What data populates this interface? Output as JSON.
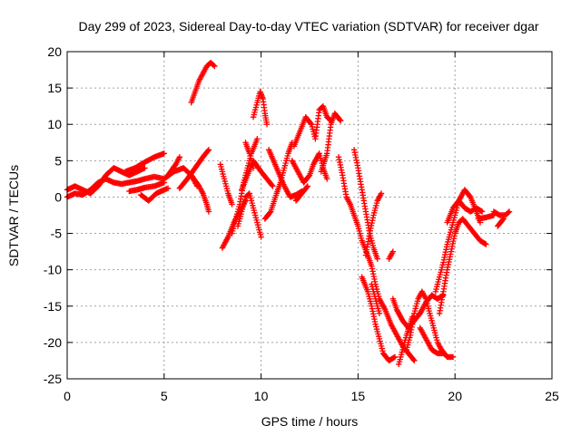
{
  "chart_data": {
    "type": "scatter",
    "title": "Day 299 of 2023, Sidereal Day-to-day VTEC variation (SDTVAR) for receiver dgar",
    "xlabel": "GPS time / hours",
    "ylabel": "SDTVAR / TECUs",
    "xlim": [
      0,
      25
    ],
    "ylim": [
      -25,
      20
    ],
    "xticks": [
      "0",
      "5",
      "10",
      "15",
      "20",
      "25"
    ],
    "yticks": [
      "-25",
      "-20",
      "-15",
      "-10",
      "-5",
      "0",
      "5",
      "10",
      "15",
      "20"
    ],
    "grid": true,
    "marker": "plus",
    "colors": {
      "series": "#ff0000"
    },
    "series": [
      {
        "tracks": [
          [
            [
              0.0,
              1.0
            ],
            [
              0.4,
              1.5
            ],
            [
              0.8,
              1.0
            ],
            [
              1.2,
              0.5
            ],
            [
              1.6,
              1.5
            ],
            [
              2.0,
              3.0
            ],
            [
              2.4,
              4.0
            ],
            [
              2.8,
              3.5
            ],
            [
              3.2,
              3.0
            ],
            [
              3.6,
              3.5
            ],
            [
              4.0,
              4.0
            ]
          ],
          [
            [
              0.0,
              0.0
            ],
            [
              0.4,
              0.5
            ],
            [
              0.8,
              0.3
            ],
            [
              1.2,
              1.0
            ],
            [
              1.6,
              2.0
            ],
            [
              2.0,
              2.5
            ],
            [
              2.4,
              2.0
            ],
            [
              2.8,
              1.8
            ],
            [
              3.2,
              2.0
            ],
            [
              3.6,
              2.2
            ],
            [
              4.0,
              2.5
            ],
            [
              4.5,
              2.8
            ],
            [
              5.0,
              2.5
            ],
            [
              5.5,
              3.5
            ],
            [
              6.0,
              4.0
            ],
            [
              6.4,
              3.0
            ],
            [
              6.7,
              1.5
            ]
          ],
          [
            [
              3.0,
              3.5
            ],
            [
              3.5,
              4.0
            ],
            [
              4.0,
              4.8
            ],
            [
              4.5,
              5.5
            ],
            [
              5.0,
              6.0
            ]
          ],
          [
            [
              3.2,
              0.8
            ],
            [
              3.6,
              1.0
            ],
            [
              4.0,
              1.3
            ],
            [
              4.5,
              1.5
            ],
            [
              5.0,
              2.0
            ]
          ],
          [
            [
              3.8,
              0.3
            ],
            [
              4.2,
              -0.5
            ],
            [
              4.6,
              0.5
            ],
            [
              5.0,
              1.0
            ],
            [
              5.2,
              1.2
            ]
          ],
          [
            [
              5.2,
              3.0
            ],
            [
              5.6,
              4.5
            ],
            [
              5.8,
              5.5
            ]
          ],
          [
            [
              5.8,
              1.2
            ],
            [
              6.2,
              2.5
            ],
            [
              6.6,
              4.0
            ],
            [
              7.0,
              5.5
            ],
            [
              7.3,
              6.5
            ]
          ],
          [
            [
              6.4,
              3.0
            ],
            [
              6.8,
              1.5
            ],
            [
              7.0,
              0.5
            ],
            [
              7.2,
              -1.0
            ],
            [
              7.3,
              -2.0
            ]
          ],
          [
            [
              6.4,
              13.0
            ],
            [
              6.6,
              14.5
            ],
            [
              6.8,
              16.0
            ],
            [
              7.0,
              17.0
            ],
            [
              7.2,
              18.0
            ],
            [
              7.4,
              18.5
            ],
            [
              7.6,
              18.0
            ]
          ],
          [
            [
              7.9,
              4.5
            ],
            [
              8.1,
              2.5
            ],
            [
              8.3,
              0.5
            ],
            [
              8.5,
              -1.0
            ]
          ],
          [
            [
              8.0,
              -7.0
            ],
            [
              8.3,
              -5.5
            ],
            [
              8.6,
              -3.5
            ],
            [
              8.9,
              -2.0
            ],
            [
              9.2,
              -0.5
            ]
          ],
          [
            [
              8.5,
              -5.0
            ],
            [
              8.7,
              -3.0
            ],
            [
              8.9,
              -1.0
            ],
            [
              9.1,
              2.0
            ],
            [
              9.3,
              4.0
            ],
            [
              9.5,
              6.0
            ],
            [
              9.8,
              8.0
            ]
          ],
          [
            [
              8.8,
              -4.0
            ],
            [
              9.0,
              -2.0
            ],
            [
              9.2,
              0.0
            ],
            [
              9.4,
              0.5
            ],
            [
              9.6,
              -1.5
            ],
            [
              9.8,
              -3.5
            ],
            [
              10.0,
              -5.5
            ]
          ],
          [
            [
              9.0,
              1.0
            ],
            [
              9.3,
              3.0
            ],
            [
              9.6,
              5.0
            ],
            [
              10.0,
              3.5
            ],
            [
              10.3,
              2.5
            ],
            [
              10.6,
              1.5
            ]
          ],
          [
            [
              9.2,
              7.5
            ],
            [
              9.4,
              6.0
            ],
            [
              9.6,
              4.0
            ]
          ],
          [
            [
              9.6,
              11.0
            ],
            [
              9.8,
              13.0
            ],
            [
              9.95,
              14.5
            ],
            [
              10.1,
              13.5
            ],
            [
              10.2,
              11.5
            ],
            [
              10.3,
              10.0
            ]
          ],
          [
            [
              10.2,
              -3.0
            ],
            [
              10.5,
              -2.0
            ],
            [
              10.8,
              0.5
            ],
            [
              11.0,
              2.0
            ],
            [
              11.2,
              4.0
            ],
            [
              11.4,
              6.0
            ],
            [
              11.6,
              7.5
            ]
          ],
          [
            [
              10.4,
              6.5
            ],
            [
              10.8,
              4.0
            ],
            [
              11.2,
              1.5
            ],
            [
              11.5,
              0.0
            ],
            [
              11.8,
              0.3
            ],
            [
              12.1,
              0.8
            ]
          ],
          [
            [
              11.7,
              7.0
            ],
            [
              12.0,
              9.0
            ],
            [
              12.3,
              11.0
            ],
            [
              12.6,
              10.0
            ],
            [
              12.8,
              8.0
            ],
            [
              13.0,
              12.0
            ],
            [
              13.2,
              12.5
            ],
            [
              13.4,
              11.0
            ],
            [
              13.6,
              10.5
            ]
          ],
          [
            [
              11.6,
              5.0
            ],
            [
              11.9,
              3.5
            ],
            [
              12.2,
              2.0
            ],
            [
              12.5,
              3.0
            ],
            [
              12.7,
              4.5
            ],
            [
              13.0,
              6.0
            ],
            [
              13.2,
              4.0
            ],
            [
              13.4,
              2.5
            ]
          ],
          [
            [
              11.8,
              -0.5
            ],
            [
              12.1,
              0.5
            ],
            [
              12.4,
              1.5
            ]
          ],
          [
            [
              13.1,
              3.5
            ],
            [
              13.4,
              6.0
            ],
            [
              13.6,
              10.0
            ],
            [
              13.8,
              11.5
            ],
            [
              14.1,
              10.5
            ]
          ],
          [
            [
              14.0,
              5.5
            ],
            [
              14.2,
              3.0
            ],
            [
              14.4,
              0.0
            ],
            [
              14.6,
              -1.0
            ],
            [
              14.8,
              -2.5
            ],
            [
              15.0,
              -4.0
            ],
            [
              15.2,
              -6.0
            ],
            [
              15.5,
              -8.0
            ],
            [
              15.7,
              -9.5
            ],
            [
              15.9,
              -12.0
            ],
            [
              16.1,
              -14.0
            ],
            [
              16.4,
              -15.5
            ],
            [
              16.7,
              -17.5
            ],
            [
              17.0,
              -19.0
            ],
            [
              17.3,
              -20.5
            ],
            [
              17.6,
              -21.5
            ],
            [
              17.9,
              -22.5
            ]
          ],
          [
            [
              14.8,
              6.5
            ],
            [
              15.0,
              4.0
            ],
            [
              15.2,
              1.0
            ],
            [
              15.4,
              -2.0
            ],
            [
              15.6,
              -5.0
            ],
            [
              15.8,
              -7.0
            ],
            [
              16.0,
              -8.5
            ]
          ],
          [
            [
              15.4,
              -8.0
            ],
            [
              15.6,
              -5.0
            ],
            [
              15.8,
              -2.5
            ],
            [
              16.0,
              -0.5
            ],
            [
              16.2,
              0.5
            ]
          ],
          [
            [
              15.2,
              -11.0
            ],
            [
              15.5,
              -13.0
            ],
            [
              15.7,
              -15.0
            ],
            [
              15.9,
              -17.5
            ],
            [
              16.1,
              -19.5
            ],
            [
              16.3,
              -21.5
            ],
            [
              16.6,
              -22.5
            ],
            [
              16.9,
              -22.0
            ]
          ],
          [
            [
              15.7,
              -12.0
            ],
            [
              15.9,
              -14.0
            ],
            [
              16.1,
              -16.0
            ]
          ],
          [
            [
              16.8,
              -14.0
            ],
            [
              17.0,
              -15.5
            ],
            [
              17.3,
              -17.0
            ],
            [
              17.6,
              -18.0
            ],
            [
              17.9,
              -17.0
            ],
            [
              18.2,
              -16.0
            ],
            [
              18.5,
              -14.5
            ],
            [
              18.8,
              -13.5
            ],
            [
              19.1,
              -14.0
            ],
            [
              19.4,
              -13.5
            ]
          ],
          [
            [
              16.6,
              -8.5
            ],
            [
              16.8,
              -7.5
            ]
          ],
          [
            [
              17.5,
              -21.0
            ],
            [
              17.7,
              -19.0
            ],
            [
              17.9,
              -16.0
            ],
            [
              18.1,
              -14.0
            ],
            [
              18.3,
              -13.0
            ],
            [
              18.5,
              -14.0
            ],
            [
              18.7,
              -16.0
            ],
            [
              18.9,
              -18.0
            ],
            [
              19.1,
              -20.0
            ],
            [
              19.3,
              -21.0
            ],
            [
              19.6,
              -22.0
            ],
            [
              19.9,
              -22.0
            ]
          ],
          [
            [
              17.1,
              -23.0
            ],
            [
              17.3,
              -21.0
            ],
            [
              17.5,
              -19.0
            ],
            [
              17.8,
              -16.5
            ]
          ],
          [
            [
              18.2,
              -18.0
            ],
            [
              18.5,
              -19.5
            ],
            [
              18.8,
              -21.0
            ],
            [
              19.1,
              -21.5
            ],
            [
              19.4,
              -21.5
            ]
          ],
          [
            [
              19.0,
              -13.0
            ],
            [
              19.2,
              -11.0
            ],
            [
              19.4,
              -9.0
            ],
            [
              19.6,
              -6.5
            ],
            [
              19.8,
              -4.5
            ],
            [
              20.0,
              -2.5
            ],
            [
              20.2,
              -0.5
            ],
            [
              20.5,
              1.0
            ],
            [
              20.8,
              0.0
            ],
            [
              21.1,
              -2.0
            ],
            [
              21.3,
              -3.5
            ]
          ],
          [
            [
              19.2,
              -16.0
            ],
            [
              19.4,
              -13.0
            ],
            [
              19.6,
              -10.0
            ],
            [
              19.8,
              -7.5
            ],
            [
              20.0,
              -5.0
            ],
            [
              20.2,
              -3.5
            ],
            [
              20.4,
              -3.0
            ],
            [
              20.7,
              -4.0
            ],
            [
              21.0,
              -5.0
            ],
            [
              21.3,
              -6.0
            ],
            [
              21.6,
              -6.5
            ]
          ],
          [
            [
              19.6,
              -3.5
            ],
            [
              19.9,
              -1.5
            ],
            [
              20.2,
              -0.5
            ],
            [
              20.5,
              -1.5
            ],
            [
              20.8,
              -2.0
            ],
            [
              21.1,
              -1.5
            ],
            [
              21.4,
              -2.0
            ]
          ],
          [
            [
              22.0,
              -2.0
            ],
            [
              22.3,
              -2.5
            ],
            [
              22.6,
              -2.5
            ],
            [
              22.8,
              -2.0
            ]
          ],
          [
            [
              21.2,
              -3.0
            ],
            [
              21.6,
              -2.8
            ],
            [
              22.0,
              -2.5
            ]
          ],
          [
            [
              22.2,
              -4.0
            ],
            [
              22.5,
              -3.0
            ]
          ]
        ]
      }
    ]
  }
}
